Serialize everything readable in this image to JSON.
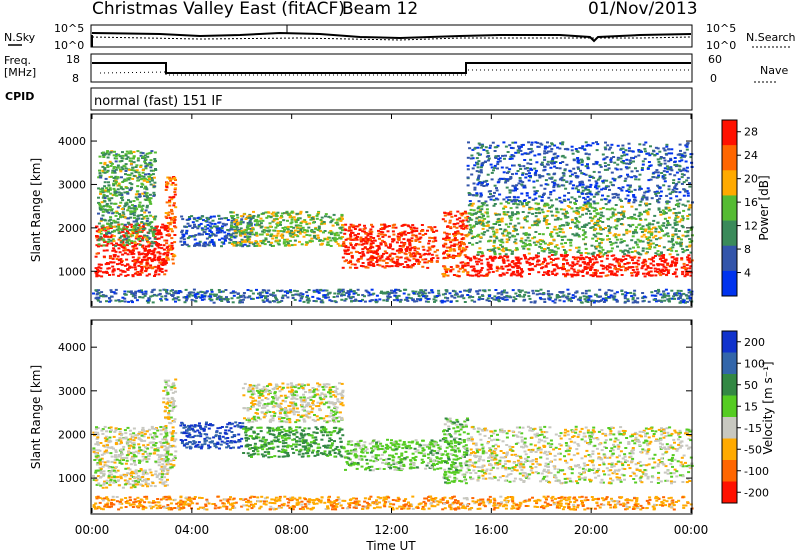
{
  "header": {
    "title": "Christmas Valley East (fitACF)",
    "beam": "Beam 12",
    "date": "01/Nov/2013"
  },
  "status_panels": {
    "nsky_label": "N.Sky",
    "nsearch_label": "N.Search",
    "noise_ticks": [
      "10^5",
      "10^0"
    ],
    "freq_label_line1": "Freq.",
    "freq_label_line2": "[MHz]",
    "freq_ticks": [
      "18",
      "8"
    ],
    "nave_label": "Nave",
    "nave_ticks": [
      "60",
      "0"
    ],
    "cpid_label": "CPID",
    "cpid_text": "normal (fast) 151 IF"
  },
  "chart_data": [
    {
      "type": "heatmap",
      "title": "",
      "quantity": "Power",
      "xlabel": "",
      "ylabel": "Slant Range [km]",
      "x_ticks": [
        "00:00",
        "04:00",
        "08:00",
        "12:00",
        "16:00",
        "20:00",
        "00:00"
      ],
      "xlim_hours": [
        0,
        24
      ],
      "ylim": [
        200,
        4600
      ],
      "y_ticks": [
        1000,
        2000,
        3000,
        4000
      ],
      "colorbar": {
        "label": "Power [dB]",
        "ticks": [
          4,
          8,
          12,
          16,
          20,
          24,
          28
        ],
        "range": [
          0,
          30
        ],
        "colors": [
          "#0033ee",
          "#3355aa",
          "#3a8a5a",
          "#55bb33",
          "#ffaa00",
          "#ff6600",
          "#ff1100"
        ]
      },
      "regions": [
        {
          "t": [
            0.1,
            3.0
          ],
          "r": [
            900,
            2100
          ],
          "level": 28
        },
        {
          "t": [
            0.2,
            2.5
          ],
          "r": [
            1600,
            3800
          ],
          "level": 12
        },
        {
          "t": [
            2.9,
            3.3
          ],
          "r": [
            1200,
            3200
          ],
          "level": 22
        },
        {
          "t": [
            3.5,
            6.5
          ],
          "r": [
            1600,
            2300
          ],
          "level": 6
        },
        {
          "t": [
            5.5,
            10.0
          ],
          "r": [
            1600,
            2400
          ],
          "level": 14
        },
        {
          "t": [
            10.0,
            13.8
          ],
          "r": [
            1100,
            2100
          ],
          "level": 26
        },
        {
          "t": [
            14.0,
            15.0
          ],
          "r": [
            900,
            2400
          ],
          "level": 24
        },
        {
          "t": [
            15.0,
            24.0
          ],
          "r": [
            900,
            1400
          ],
          "level": 28
        },
        {
          "t": [
            15.0,
            24.0
          ],
          "r": [
            1400,
            2600
          ],
          "level": 13
        },
        {
          "t": [
            15.0,
            24.0
          ],
          "r": [
            2600,
            4000
          ],
          "level": 6
        },
        {
          "t": [
            0.0,
            24.0
          ],
          "r": [
            300,
            600
          ],
          "level": 7
        }
      ]
    },
    {
      "type": "heatmap",
      "title": "",
      "quantity": "Velocity",
      "xlabel": "Time UT",
      "ylabel": "Slant Range [km]",
      "x_ticks": [
        "00:00",
        "04:00",
        "08:00",
        "12:00",
        "16:00",
        "20:00",
        "00:00"
      ],
      "xlim_hours": [
        0,
        24
      ],
      "ylim": [
        200,
        4600
      ],
      "y_ticks": [
        1000,
        2000,
        3000,
        4000
      ],
      "colorbar": {
        "label": "Velocity [m s⁻¹]",
        "ticks": [
          200,
          100,
          50,
          15,
          -15,
          -50,
          -100,
          -200
        ],
        "colors": [
          "#1133cc",
          "#3366aa",
          "#338844",
          "#55cc22",
          "#c8c8c0",
          "#ffaa00",
          "#ff6600",
          "#ff1100"
        ]
      },
      "regions": [
        {
          "t": [
            0.0,
            3.0
          ],
          "r": [
            800,
            2200
          ],
          "level": 0
        },
        {
          "t": [
            2.8,
            3.3
          ],
          "r": [
            1200,
            3300
          ],
          "level": 0
        },
        {
          "t": [
            3.5,
            6.0
          ],
          "r": [
            1700,
            2300
          ],
          "level": 200
        },
        {
          "t": [
            6.0,
            10.0
          ],
          "r": [
            1500,
            2200
          ],
          "level": 60
        },
        {
          "t": [
            6.0,
            10.0
          ],
          "r": [
            2300,
            3200
          ],
          "level": 0
        },
        {
          "t": [
            10.0,
            14.0
          ],
          "r": [
            1200,
            1900
          ],
          "level": 30
        },
        {
          "t": [
            14.0,
            15.0
          ],
          "r": [
            900,
            2400
          ],
          "level": 30
        },
        {
          "t": [
            15.0,
            24.0
          ],
          "r": [
            900,
            2200
          ],
          "level": 0
        },
        {
          "t": [
            0.0,
            24.0
          ],
          "r": [
            300,
            600
          ],
          "level": -40
        }
      ]
    }
  ]
}
